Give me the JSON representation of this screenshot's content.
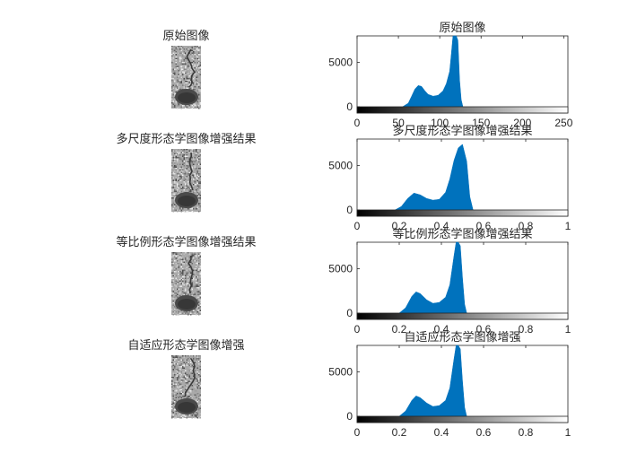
{
  "figure": {
    "background": "#ffffff",
    "axis_color": "#262626",
    "bar_color": "#0072BD"
  },
  "image_panels": [
    {
      "title": "原始图像",
      "noise_seed": 11
    },
    {
      "title": "多尺度形态学图像增强结果",
      "noise_seed": 23
    },
    {
      "title": "等比例形态学图像增强结果",
      "noise_seed": 37
    },
    {
      "title": "自适应形态学图像增强",
      "noise_seed": 53
    }
  ],
  "chart_data": [
    {
      "type": "bar",
      "title": "原始图像",
      "xlim": [
        0,
        255
      ],
      "ylim": [
        0,
        8000
      ],
      "xticks": [
        0,
        50,
        100,
        150,
        200,
        250
      ],
      "xtick_labels": [
        "0",
        "50",
        "100",
        "150",
        "200",
        "250"
      ],
      "yticks": [
        0,
        5000
      ],
      "ytick_labels": [
        "0",
        "5000"
      ],
      "colorbar": "grayscale",
      "series": [
        {
          "x": [
            55,
            62,
            66,
            70,
            74,
            78,
            82,
            86,
            92,
            98,
            104,
            108,
            112,
            114,
            116,
            118,
            120,
            122,
            124,
            126,
            128
          ],
          "values": [
            0,
            400,
            1200,
            2000,
            2400,
            2300,
            1800,
            1400,
            1200,
            1300,
            1800,
            2600,
            4000,
            6000,
            8000,
            8000,
            8000,
            7500,
            3000,
            800,
            0
          ]
        }
      ]
    },
    {
      "type": "bar",
      "title": "多尺度形态学图像增强结果",
      "xlim": [
        0,
        1
      ],
      "ylim": [
        0,
        8000
      ],
      "xticks": [
        0,
        0.2,
        0.4,
        0.6,
        0.8,
        1
      ],
      "xtick_labels": [
        "0",
        "0.2",
        "0.4",
        "0.6",
        "0.8",
        "1"
      ],
      "yticks": [
        0,
        5000
      ],
      "ytick_labels": [
        "0",
        "5000"
      ],
      "colorbar": "grayscale",
      "series": [
        {
          "x": [
            0.18,
            0.21,
            0.24,
            0.27,
            0.3,
            0.33,
            0.36,
            0.39,
            0.42,
            0.44,
            0.46,
            0.48,
            0.5,
            0.52,
            0.535,
            0.55
          ],
          "values": [
            0,
            400,
            1300,
            1900,
            1700,
            1300,
            1100,
            1200,
            2000,
            3500,
            5600,
            7000,
            7400,
            5500,
            1500,
            0
          ]
        }
      ]
    },
    {
      "type": "bar",
      "title": "等比例形态学图像增强结果",
      "xlim": [
        0,
        1
      ],
      "ylim": [
        0,
        8000
      ],
      "xticks": [
        0,
        0.2,
        0.4,
        0.6,
        0.8,
        1
      ],
      "xtick_labels": [
        "0",
        "0.2",
        "0.4",
        "0.6",
        "0.8",
        "1"
      ],
      "yticks": [
        0,
        5000
      ],
      "ytick_labels": [
        "0",
        "5000"
      ],
      "colorbar": "grayscale",
      "series": [
        {
          "x": [
            0.2,
            0.23,
            0.26,
            0.28,
            0.3,
            0.33,
            0.36,
            0.39,
            0.42,
            0.44,
            0.46,
            0.47,
            0.48,
            0.49,
            0.5,
            0.51,
            0.52
          ],
          "values": [
            0,
            600,
            1900,
            2400,
            2200,
            1500,
            1100,
            1200,
            1800,
            3200,
            6500,
            8000,
            8000,
            7600,
            4000,
            1000,
            0
          ]
        }
      ]
    },
    {
      "type": "bar",
      "title": "自适应形态学图像增强",
      "xlim": [
        0,
        1
      ],
      "ylim": [
        0,
        8000
      ],
      "xticks": [
        0,
        0.2,
        0.4,
        0.6,
        0.8,
        1
      ],
      "xtick_labels": [
        "0",
        "0.2",
        "0.4",
        "0.6",
        "0.8",
        "1"
      ],
      "yticks": [
        0,
        5000
      ],
      "ytick_labels": [
        "0",
        "5000"
      ],
      "colorbar": "grayscale",
      "series": [
        {
          "x": [
            0.2,
            0.23,
            0.26,
            0.28,
            0.3,
            0.33,
            0.36,
            0.39,
            0.42,
            0.44,
            0.46,
            0.47,
            0.48,
            0.49,
            0.5,
            0.51,
            0.52
          ],
          "values": [
            0,
            600,
            1800,
            2300,
            2100,
            1500,
            1100,
            1200,
            1800,
            3200,
            6500,
            8000,
            8000,
            7600,
            4000,
            1000,
            0
          ]
        }
      ]
    }
  ]
}
